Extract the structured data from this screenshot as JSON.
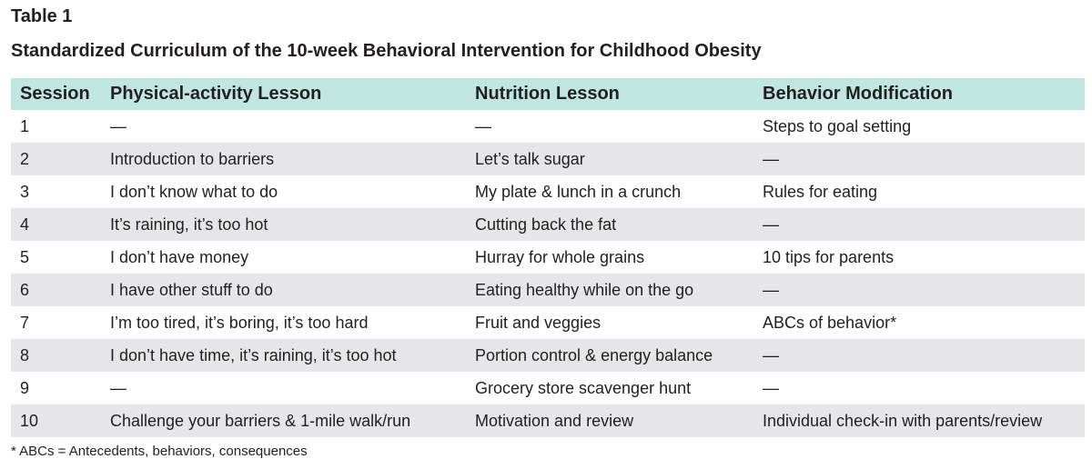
{
  "table_label": "Table 1",
  "caption": "Standardized Curriculum of the 10-week Behavioral Intervention for Childhood Obesity",
  "header": {
    "session": "Session",
    "physical": "Physical-activity Lesson",
    "nutrition": "Nutrition Lesson",
    "behavior": "Behavior Modification"
  },
  "rows": [
    {
      "session": "1",
      "physical": "—",
      "nutrition": "—",
      "behavior": "Steps to goal setting"
    },
    {
      "session": "2",
      "physical": "Introduction to barriers",
      "nutrition": "Let’s talk sugar",
      "behavior": "—"
    },
    {
      "session": "3",
      "physical": "I don’t know what to do",
      "nutrition": "My plate & lunch in a crunch",
      "behavior": "Rules for eating"
    },
    {
      "session": "4",
      "physical": "It’s raining, it’s too hot",
      "nutrition": "Cutting back the fat",
      "behavior": "—"
    },
    {
      "session": "5",
      "physical": "I don’t have money",
      "nutrition": "Hurray for whole grains",
      "behavior": "10 tips for parents"
    },
    {
      "session": "6",
      "physical": "I have other stuff to do",
      "nutrition": "Eating healthy while on the go",
      "behavior": "—"
    },
    {
      "session": "7",
      "physical": "I’m too tired, it’s boring, it’s too hard",
      "nutrition": "Fruit and veggies",
      "behavior": "ABCs of behavior*"
    },
    {
      "session": "8",
      "physical": "I don’t have time, it’s raining, it’s too hot",
      "nutrition": "Portion control & energy balance",
      "behavior": "—"
    },
    {
      "session": "9",
      "physical": "—",
      "nutrition": "Grocery store scavenger hunt",
      "behavior": "—"
    },
    {
      "session": "10",
      "physical": "Challenge your barriers & 1-mile walk/run",
      "nutrition": "Motivation and review",
      "behavior": "Individual check-in with parents/review"
    }
  ],
  "footnote": "* ABCs = Antecedents, behaviors, consequences",
  "colors": {
    "header_bg": "#bfe6e0",
    "stripe_bg": "#e6e6e8",
    "text": "#231f20"
  }
}
